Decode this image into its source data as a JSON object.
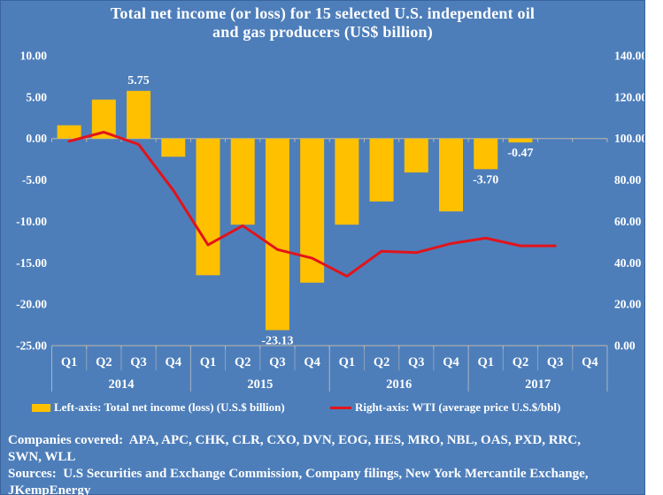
{
  "title": {
    "line1": "Total net income (or loss) for 15 selected U.S. independent oil",
    "line2": "and gas producers (US$ billion)"
  },
  "legend": {
    "bar_label": "Left-axis: Total net income (loss) (U.S.$ billion)",
    "line_label": "Right-axis: WTI (average price U.S.$/bbl)"
  },
  "footer": {
    "lines": [
      "Companies covered:  APA, APC, CHK, CLR, CXO, DVN, EOG, HES, MRO, NBL, OAS, PXD, RRC,",
      "SWN, WLL",
      "Sources:  U.S Securities and Exchange Commission, Company filings, New York Mercantile Exchange,",
      "JKempEnergy"
    ]
  },
  "colors": {
    "background": "#4D7EBA",
    "panel_border": "#3A639C",
    "bar": "#FFC000",
    "line": "#E2131B",
    "axis": "#BFB8A8",
    "separator": "#A9B3C2",
    "text": "#FFFFFF"
  },
  "chart_data": {
    "type": "combo",
    "title": "Total net income (or loss) for 15 selected U.S. independent oil and gas producers (US$ billion)",
    "categories": [
      "Q1",
      "Q2",
      "Q3",
      "Q4",
      "Q1",
      "Q2",
      "Q3",
      "Q4",
      "Q1",
      "Q2",
      "Q3",
      "Q4",
      "Q1",
      "Q2",
      "Q3",
      "Q4"
    ],
    "years": [
      "2014",
      "2015",
      "2016",
      "2017"
    ],
    "series": [
      {
        "name": "Left-axis: Total net income (loss) (U.S.$ billion)",
        "type": "bar",
        "axis": "left",
        "values": [
          1.6,
          4.7,
          5.75,
          -2.2,
          -16.5,
          -10.4,
          -23.13,
          -17.4,
          -10.4,
          -7.6,
          -4.1,
          -8.8,
          -3.7,
          -0.47,
          null,
          null
        ]
      },
      {
        "name": "Right-axis: WTI (average price U.S.$/bbl)",
        "type": "line",
        "axis": "right",
        "values": [
          98.7,
          103.1,
          97.2,
          75.0,
          48.6,
          57.9,
          46.4,
          42.2,
          33.5,
          45.6,
          44.9,
          49.3,
          51.9,
          48.2,
          48.2,
          null
        ]
      }
    ],
    "data_labels": [
      {
        "index": 2,
        "text": "5.75",
        "position": "above"
      },
      {
        "index": 6,
        "text": "-23.13",
        "position": "below"
      },
      {
        "index": 12,
        "text": "-3.70",
        "position": "below"
      },
      {
        "index": 13,
        "text": "-0.47",
        "position": "below"
      }
    ],
    "left_axis": {
      "min": -25,
      "max": 10,
      "step": 5,
      "tick_labels": [
        "10.00",
        "5.00",
        "0.00",
        "-5.00",
        "-10.00",
        "-15.00",
        "-20.00",
        "-25.00"
      ]
    },
    "right_axis": {
      "min": 0,
      "max": 140,
      "step": 20,
      "tick_labels": [
        "140.00",
        "120.00",
        "100.00",
        "80.00",
        "60.00",
        "40.00",
        "20.00",
        "0.00"
      ]
    },
    "grid": "zero-line-only",
    "legend_position": "bottom"
  }
}
